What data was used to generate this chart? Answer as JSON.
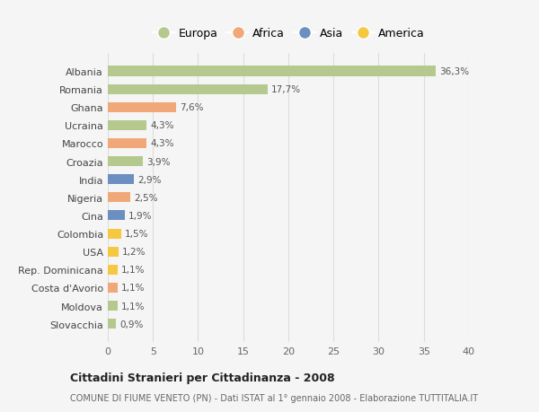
{
  "categories": [
    "Slovacchia",
    "Moldova",
    "Costa d'Avorio",
    "Rep. Dominicana",
    "USA",
    "Colombia",
    "Cina",
    "Nigeria",
    "India",
    "Croazia",
    "Marocco",
    "Ucraina",
    "Ghana",
    "Romania",
    "Albania"
  ],
  "values": [
    0.9,
    1.1,
    1.1,
    1.1,
    1.2,
    1.5,
    1.9,
    2.5,
    2.9,
    3.9,
    4.3,
    4.3,
    7.6,
    17.7,
    36.3
  ],
  "colors": [
    "#b5c98e",
    "#b5c98e",
    "#f0a878",
    "#f5c842",
    "#f5c842",
    "#f5c842",
    "#6a8fc0",
    "#f0a878",
    "#6a8fc0",
    "#b5c98e",
    "#f0a878",
    "#b5c98e",
    "#f0a878",
    "#b5c98e",
    "#b5c98e"
  ],
  "labels": [
    "0,9%",
    "1,1%",
    "1,1%",
    "1,1%",
    "1,2%",
    "1,5%",
    "1,9%",
    "2,5%",
    "2,9%",
    "3,9%",
    "4,3%",
    "4,3%",
    "7,6%",
    "17,7%",
    "36,3%"
  ],
  "legend_labels": [
    "Europa",
    "Africa",
    "Asia",
    "America"
  ],
  "legend_colors": [
    "#b5c98e",
    "#f0a878",
    "#6a8fc0",
    "#f5c842"
  ],
  "title": "Cittadini Stranieri per Cittadinanza - 2008",
  "subtitle": "COMUNE DI FIUME VENETO (PN) - Dati ISTAT al 1° gennaio 2008 - Elaborazione TUTTITALIA.IT",
  "xlim": [
    0,
    40
  ],
  "xticks": [
    0,
    5,
    10,
    15,
    20,
    25,
    30,
    35,
    40
  ],
  "background_color": "#f5f5f5",
  "grid_color": "#dddddd",
  "bar_height": 0.55
}
